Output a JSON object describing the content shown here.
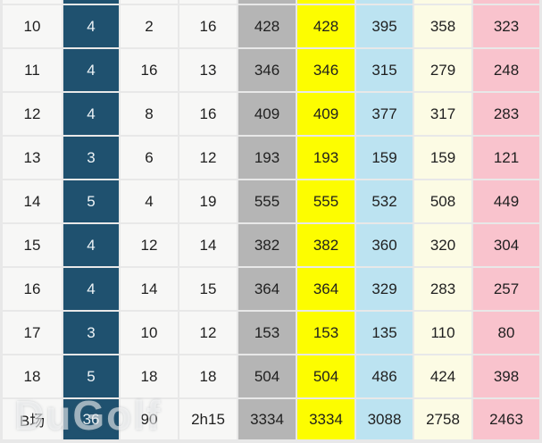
{
  "watermark": "DuGolf",
  "colors": {
    "par_column_bg": "#1f516f",
    "tee_columns": [
      "#b5b5b5",
      "#fdfd00",
      "#bce3f1",
      "#fcfbe4",
      "#f9c3cd"
    ],
    "cell_bg": "#f7f7f6",
    "grid_line": "#c9c9c9"
  },
  "scorecard": {
    "rows": [
      {
        "hole": "10",
        "par": "4",
        "stroke_index": "2",
        "time": "16",
        "distances": [
          "428",
          "428",
          "395",
          "358",
          "323"
        ]
      },
      {
        "hole": "11",
        "par": "4",
        "stroke_index": "16",
        "time": "13",
        "distances": [
          "346",
          "346",
          "315",
          "279",
          "248"
        ]
      },
      {
        "hole": "12",
        "par": "4",
        "stroke_index": "8",
        "time": "16",
        "distances": [
          "409",
          "409",
          "377",
          "317",
          "283"
        ]
      },
      {
        "hole": "13",
        "par": "3",
        "stroke_index": "6",
        "time": "12",
        "distances": [
          "193",
          "193",
          "159",
          "159",
          "121"
        ]
      },
      {
        "hole": "14",
        "par": "5",
        "stroke_index": "4",
        "time": "19",
        "distances": [
          "555",
          "555",
          "532",
          "508",
          "449"
        ]
      },
      {
        "hole": "15",
        "par": "4",
        "stroke_index": "12",
        "time": "14",
        "distances": [
          "382",
          "382",
          "360",
          "320",
          "304"
        ]
      },
      {
        "hole": "16",
        "par": "4",
        "stroke_index": "14",
        "time": "15",
        "distances": [
          "364",
          "364",
          "329",
          "283",
          "257"
        ]
      },
      {
        "hole": "17",
        "par": "3",
        "stroke_index": "10",
        "time": "12",
        "distances": [
          "153",
          "153",
          "135",
          "110",
          "80"
        ]
      },
      {
        "hole": "18",
        "par": "5",
        "stroke_index": "18",
        "time": "18",
        "distances": [
          "504",
          "504",
          "486",
          "424",
          "398"
        ]
      }
    ],
    "total": {
      "hole": "B场",
      "par": "36",
      "stroke_index": "90",
      "time": "2h15",
      "distances": [
        "3334",
        "3334",
        "3088",
        "2758",
        "2463"
      ]
    }
  }
}
